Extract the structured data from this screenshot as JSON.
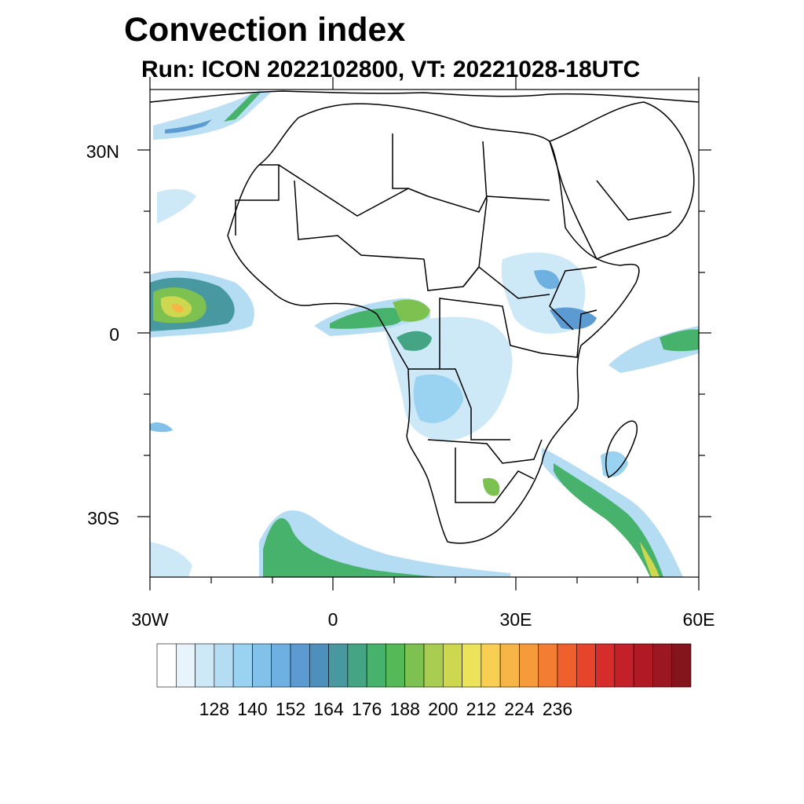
{
  "title": "Convection index",
  "subtitle": "Run: ICON 2022102800,  VT: 20221028-18UTC",
  "axes": {
    "lat_labels": [
      "30N",
      "0",
      "30S"
    ],
    "lon_labels": [
      "30W",
      "0",
      "30E",
      "60E"
    ]
  },
  "colorbar": {
    "labels": [
      "128",
      "140",
      "152",
      "164",
      "176",
      "188",
      "200",
      "212",
      "224",
      "236"
    ],
    "colors": [
      "#ffffff",
      "#e8f4fb",
      "#cde8f6",
      "#b4ddf3",
      "#9ad2f1",
      "#82c2ea",
      "#6fb0e2",
      "#5b9bd1",
      "#4d8fbd",
      "#48989f",
      "#44a584",
      "#47b26b",
      "#55b957",
      "#7dc150",
      "#a8cd50",
      "#cdd84f",
      "#ede35a",
      "#f8cf52",
      "#f7b547",
      "#f59b3a",
      "#f27d33",
      "#ee612d",
      "#e6452b",
      "#d72c2c",
      "#c42029",
      "#b11a25",
      "#9b1721",
      "#85151c"
    ]
  },
  "map": {
    "projection": "cylindrical-equidistant",
    "lon_range": [
      -30,
      60
    ],
    "lat_range": [
      -40,
      40
    ],
    "variable": "Convection index"
  }
}
